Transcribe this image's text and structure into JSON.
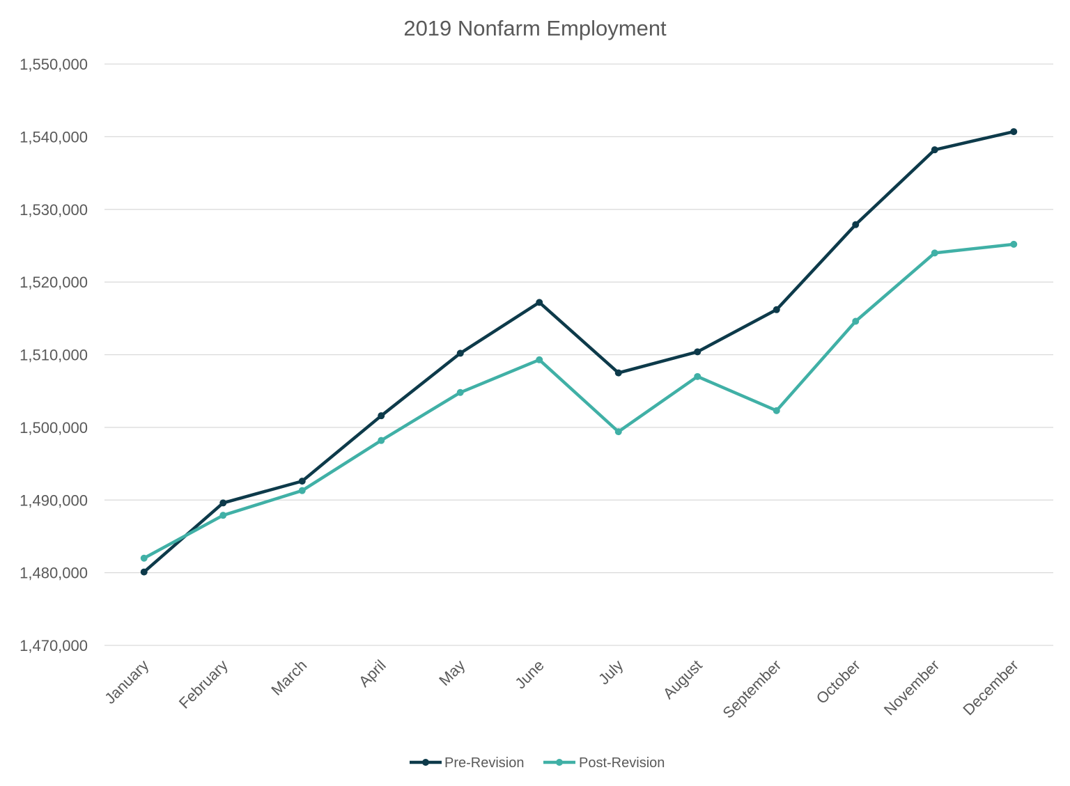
{
  "chart_data": {
    "type": "line",
    "title": "2019 Nonfarm Employment",
    "xlabel": "",
    "ylabel": "",
    "categories": [
      "January",
      "February",
      "March",
      "April",
      "May",
      "June",
      "July",
      "August",
      "September",
      "October",
      "November",
      "December"
    ],
    "series": [
      {
        "name": "Pre-Revision",
        "color": "#0d3a4a",
        "values": [
          1480100,
          1489600,
          1492600,
          1501600,
          1510200,
          1517200,
          1507500,
          1510400,
          1516200,
          1527900,
          1538200,
          1540700
        ]
      },
      {
        "name": "Post-Revision",
        "color": "#40b0a6",
        "values": [
          1482000,
          1487900,
          1491300,
          1498200,
          1504800,
          1509300,
          1499400,
          1507000,
          1502300,
          1514600,
          1524000,
          1525200
        ]
      }
    ],
    "ylim": [
      1470000,
      1550000
    ],
    "yticks": [
      1470000,
      1480000,
      1490000,
      1500000,
      1510000,
      1520000,
      1530000,
      1540000,
      1550000
    ],
    "ytick_labels": [
      "1,470,000",
      "1,480,000",
      "1,490,000",
      "1,500,000",
      "1,510,000",
      "1,520,000",
      "1,530,000",
      "1,540,000",
      "1,550,000"
    ],
    "grid": true,
    "legend_position": "bottom-center"
  }
}
